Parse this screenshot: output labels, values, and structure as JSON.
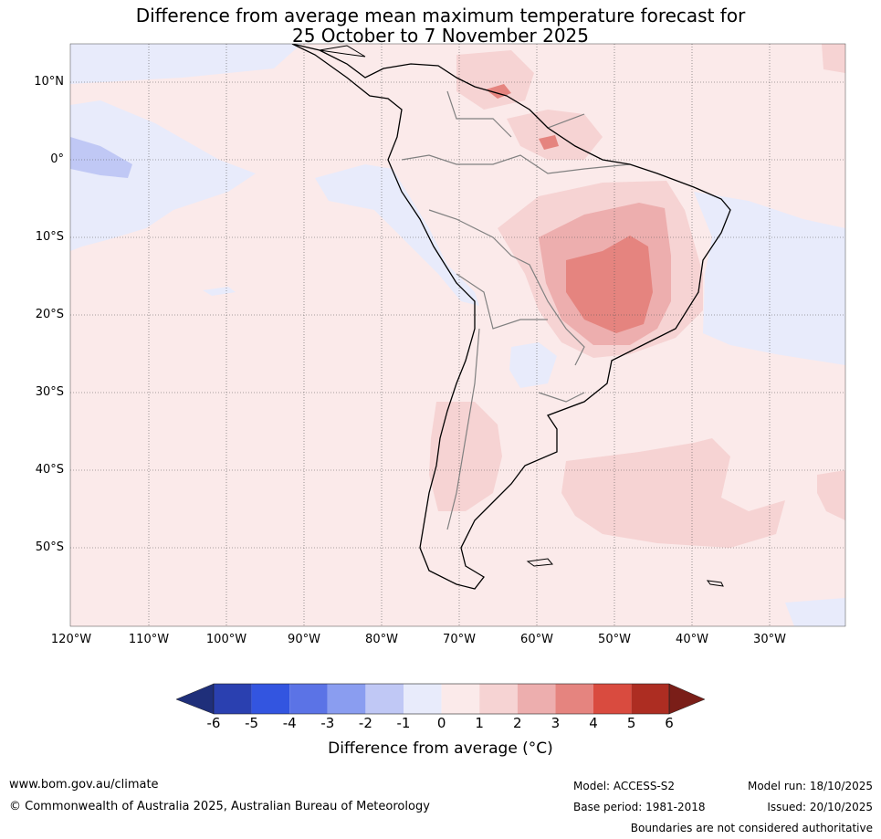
{
  "title": {
    "line1": "Difference from average mean maximum temperature forecast for",
    "line2": "25 October to 7 November 2025"
  },
  "map": {
    "lat_labels": [
      "10°N",
      "0°",
      "10°S",
      "20°S",
      "30°S",
      "40°S",
      "50°S"
    ],
    "lon_labels": [
      "120°W",
      "110°W",
      "100°W",
      "90°W",
      "80°W",
      "70°W",
      "60°W",
      "50°W",
      "40°W",
      "30°W"
    ]
  },
  "legend": {
    "title": "Difference from average (°C)",
    "ticks": [
      "-6",
      "-5",
      "-4",
      "-3",
      "-2",
      "-1",
      "0",
      "1",
      "2",
      "3",
      "4",
      "5",
      "6"
    ],
    "colors": [
      "#1f2f7a",
      "#2a40b0",
      "#3355e0",
      "#5b73e6",
      "#8a9df0",
      "#c0c8f5",
      "#e8ebfb",
      "#fbeaea",
      "#f6d3d3",
      "#edaeae",
      "#e5847f",
      "#d94b3f",
      "#ad2d22",
      "#7a1e18"
    ]
  },
  "footer": {
    "url": "www.bom.gov.au/climate",
    "copyright": "© Commonwealth of Australia 2025, Australian Bureau of Meteorology",
    "model": "Model: ACCESS-S2",
    "base_period": "Base period: 1981-2018",
    "model_run": "Model run: 18/10/2025",
    "issued": "Issued: 20/10/2025",
    "disclaimer": "Boundaries are not considered authoritative"
  }
}
